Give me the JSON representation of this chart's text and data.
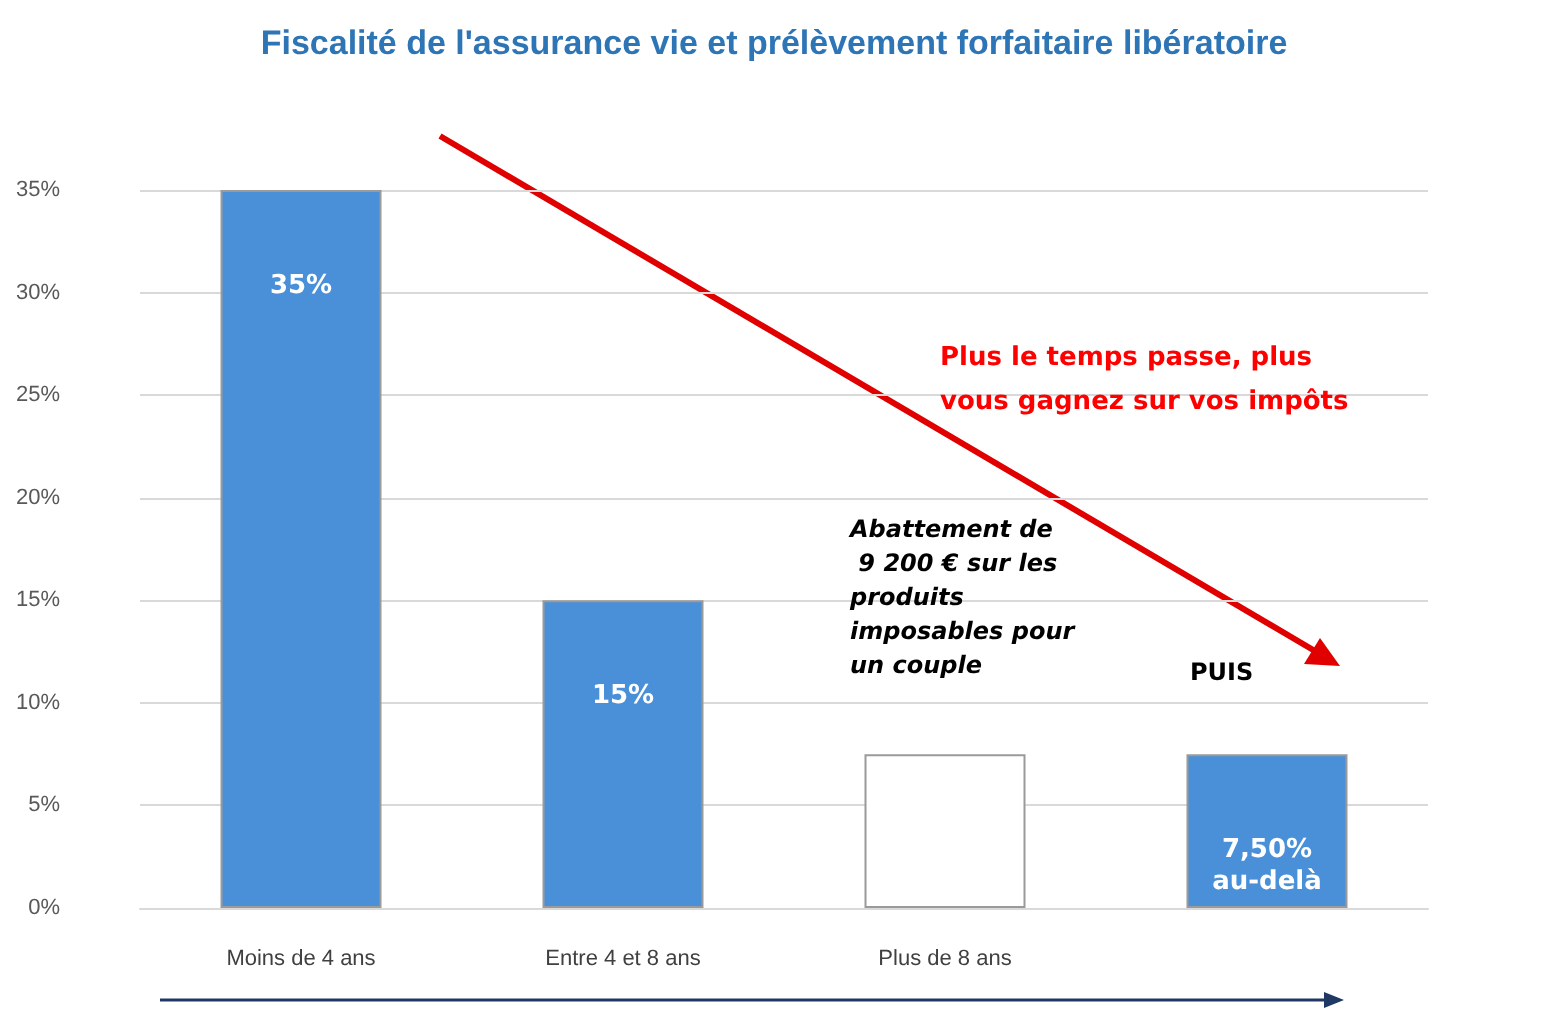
{
  "chart_data": {
    "type": "bar",
    "title": "Fiscalité de l'assurance vie et prélèvement forfaitaire libératoire",
    "categories": [
      "Moins de 4 ans",
      "Entre 4 et 8 ans",
      "Plus de 8 ans",
      null
    ],
    "values": [
      35,
      15,
      7.5,
      7.5
    ],
    "colors": [
      "#4a90d9",
      "#4a90d9",
      "#ffffff",
      "#4a90d9"
    ],
    "value_labels": [
      "35%",
      "15%",
      null,
      "7,50%\nau-delà"
    ],
    "ylim": [
      0,
      35
    ],
    "yticks": [
      {
        "value": 0,
        "label": "0%"
      },
      {
        "value": 5,
        "label": "5%"
      },
      {
        "value": 10,
        "label": "10%"
      },
      {
        "value": 15,
        "label": "15%"
      },
      {
        "value": 20,
        "label": "20%"
      },
      {
        "value": 25,
        "label": "25%"
      },
      {
        "value": 30,
        "label": "30%"
      },
      {
        "value": 35,
        "label": "35%"
      }
    ],
    "grid": "y",
    "annotations": [
      "Plus le temps passe, plus vous gagnez sur vos impôts",
      "Abattement de\n 9 200 € sur les\nproduits\nimposables pour\nun couple",
      "PUIS"
    ]
  }
}
